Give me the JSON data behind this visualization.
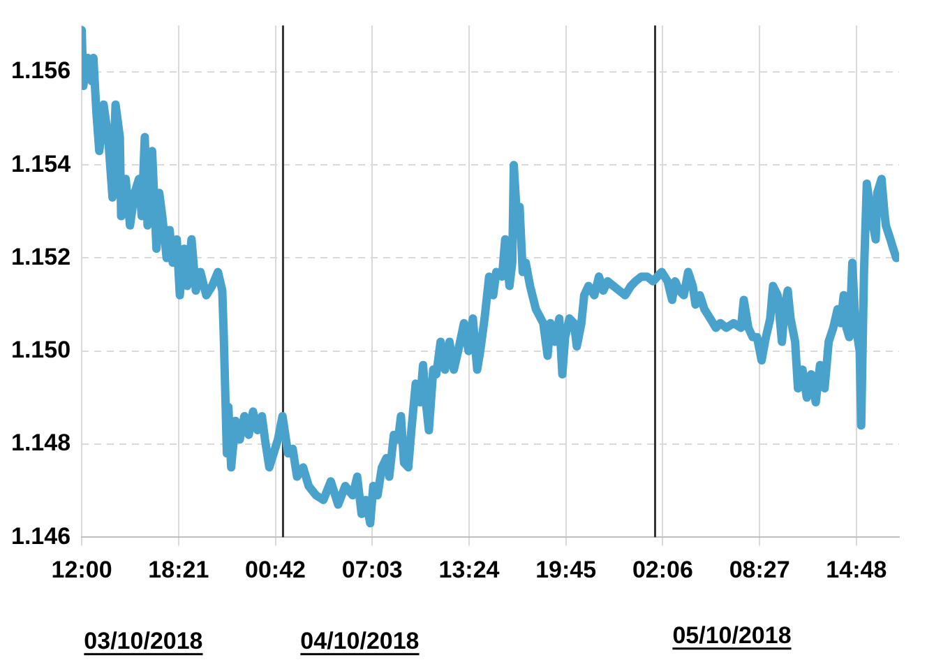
{
  "chart_data": {
    "type": "line",
    "x": [
      "2018-10-03T12:00",
      "2018-10-03T12:06",
      "2018-10-03T12:23",
      "2018-10-03T12:40",
      "2018-10-03T12:46",
      "2018-10-03T12:58",
      "2018-10-03T13:09",
      "2018-10-03T13:20",
      "2018-10-03T13:26",
      "2018-10-03T13:44",
      "2018-10-03T14:01",
      "2018-10-03T14:13",
      "2018-10-03T14:30",
      "2018-10-03T14:35",
      "2018-10-03T14:53",
      "2018-10-03T15:10",
      "2018-10-03T15:28",
      "2018-10-03T15:45",
      "2018-10-03T15:56",
      "2018-10-03T16:08",
      "2018-10-03T16:19",
      "2018-10-03T16:37",
      "2018-10-03T16:54",
      "2018-10-03T17:05",
      "2018-10-03T17:17",
      "2018-10-03T17:34",
      "2018-10-03T17:46",
      "2018-10-03T17:58",
      "2018-10-03T18:14",
      "2018-10-03T18:26",
      "2018-10-03T18:43",
      "2018-10-03T18:55",
      "2018-10-03T19:12",
      "2018-10-03T19:29",
      "2018-10-03T19:47",
      "2018-10-03T20:10",
      "2018-10-03T20:33",
      "2018-10-03T20:56",
      "2018-10-03T21:13",
      "2018-10-03T21:19",
      "2018-10-03T21:31",
      "2018-10-03T21:37",
      "2018-10-03T21:48",
      "2018-10-03T22:05",
      "2018-10-03T22:22",
      "2018-10-03T22:40",
      "2018-10-03T22:57",
      "2018-10-03T23:14",
      "2018-10-03T23:32",
      "2018-10-03T23:49",
      "2018-10-04T00:01",
      "2018-10-04T00:18",
      "2018-10-04T00:35",
      "2018-10-04T00:52",
      "2018-10-04T01:10",
      "2018-10-04T01:32",
      "2018-10-04T01:50",
      "2018-10-04T02:07",
      "2018-10-04T02:31",
      "2018-10-04T02:53",
      "2018-10-04T03:22",
      "2018-10-04T03:51",
      "2018-10-04T04:20",
      "2018-10-04T04:49",
      "2018-10-04T05:17",
      "2018-10-04T05:46",
      "2018-10-04T06:04",
      "2018-10-04T06:21",
      "2018-10-04T06:38",
      "2018-10-04T06:55",
      "2018-10-04T07:07",
      "2018-10-04T07:24",
      "2018-10-04T07:41",
      "2018-10-04T07:59",
      "2018-10-04T08:10",
      "2018-10-04T08:28",
      "2018-10-04T08:45",
      "2018-10-04T08:56",
      "2018-10-04T09:08",
      "2018-10-04T09:25",
      "2018-10-04T09:37",
      "2018-10-04T09:54",
      "2018-10-04T10:11",
      "2018-10-04T10:23",
      "2018-10-04T10:34",
      "2018-10-04T10:46",
      "2018-10-04T11:03",
      "2018-10-04T11:15",
      "2018-10-04T11:32",
      "2018-10-04T11:49",
      "2018-10-04T12:07",
      "2018-10-04T12:24",
      "2018-10-04T12:41",
      "2018-10-04T13:04",
      "2018-10-04T13:22",
      "2018-10-04T13:39",
      "2018-10-04T13:56",
      "2018-10-04T14:08",
      "2018-10-04T14:25",
      "2018-10-04T14:43",
      "2018-10-04T14:59",
      "2018-10-04T15:11",
      "2018-10-04T15:34",
      "2018-10-04T15:46",
      "2018-10-04T16:03",
      "2018-10-04T16:14",
      "2018-10-04T16:20",
      "2018-10-04T16:32",
      "2018-10-04T16:43",
      "2018-10-04T16:55",
      "2018-10-04T17:07",
      "2018-10-04T17:24",
      "2018-10-04T17:47",
      "2018-10-04T18:16",
      "2018-10-04T18:33",
      "2018-10-04T18:44",
      "2018-10-04T19:02",
      "2018-10-04T19:19",
      "2018-10-04T19:31",
      "2018-10-04T19:42",
      "2018-10-04T19:59",
      "2018-10-04T20:17",
      "2018-10-04T20:28",
      "2018-10-04T20:46",
      "2018-10-04T20:57",
      "2018-10-04T21:14",
      "2018-10-04T21:37",
      "2018-10-04T21:55",
      "2018-10-04T22:12",
      "2018-10-04T22:29",
      "2018-10-04T22:52",
      "2018-10-04T23:15",
      "2018-10-04T23:38",
      "2018-10-05T00:01",
      "2018-10-05T00:19",
      "2018-10-05T00:42",
      "2018-10-05T01:05",
      "2018-10-05T01:28",
      "2018-10-05T01:45",
      "2018-10-05T02:02",
      "2018-10-05T02:25",
      "2018-10-05T02:43",
      "2018-10-05T02:55",
      "2018-10-05T03:11",
      "2018-10-05T03:29",
      "2018-10-05T03:46",
      "2018-10-05T04:04",
      "2018-10-05T04:15",
      "2018-10-05T04:32",
      "2018-10-05T04:50",
      "2018-10-05T05:13",
      "2018-10-05T05:35",
      "2018-10-05T05:53",
      "2018-10-05T06:16",
      "2018-10-05T06:45",
      "2018-10-05T07:14",
      "2018-10-05T07:25",
      "2018-10-05T07:43",
      "2018-10-05T08:00",
      "2018-10-05T08:17",
      "2018-10-05T08:35",
      "2018-10-05T08:52",
      "2018-10-05T09:09",
      "2018-10-05T09:20",
      "2018-10-05T09:38",
      "2018-10-05T09:55",
      "2018-10-05T10:07",
      "2018-10-05T10:18",
      "2018-10-05T10:29",
      "2018-10-05T10:47",
      "2018-10-05T10:58",
      "2018-10-05T11:16",
      "2018-10-05T11:33",
      "2018-10-05T11:50",
      "2018-10-05T12:08",
      "2018-10-05T12:25",
      "2018-10-05T12:43",
      "2018-10-05T12:59",
      "2018-10-05T13:17",
      "2018-10-05T13:34",
      "2018-10-05T13:46",
      "2018-10-05T13:58",
      "2018-10-05T14:09",
      "2018-10-05T14:20",
      "2018-10-05T14:32",
      "2018-10-05T14:44",
      "2018-10-05T15:01",
      "2018-10-05T15:07",
      "2018-10-05T15:18",
      "2018-10-05T15:29",
      "2018-10-05T15:47",
      "2018-10-05T16:04",
      "2018-10-05T16:10",
      "2018-10-05T16:27",
      "2018-10-05T16:38",
      "2018-10-05T16:44",
      "2018-10-05T17:02",
      "2018-10-05T17:13",
      "2018-10-05T17:25"
    ],
    "series": [
      {
        "color": "#48a2cb",
        "values": [
          1.1569,
          1.1557,
          1.1563,
          1.1558,
          1.1563,
          1.1551,
          1.1543,
          1.1548,
          1.1553,
          1.1546,
          1.1533,
          1.1553,
          1.1546,
          1.1529,
          1.1537,
          1.1527,
          1.1534,
          1.1537,
          1.1529,
          1.1546,
          1.1527,
          1.1543,
          1.1522,
          1.1534,
          1.1529,
          1.152,
          1.1526,
          1.1519,
          1.1524,
          1.1512,
          1.1522,
          1.1514,
          1.1524,
          1.1513,
          1.1517,
          1.1512,
          1.1514,
          1.1517,
          1.1513,
          1.1503,
          1.1478,
          1.1488,
          1.1475,
          1.1485,
          1.1481,
          1.1486,
          1.1482,
          1.1487,
          1.1483,
          1.1486,
          1.1481,
          1.1475,
          1.1478,
          1.1481,
          1.1486,
          1.1478,
          1.1479,
          1.1473,
          1.1475,
          1.1471,
          1.1469,
          1.1468,
          1.1472,
          1.1467,
          1.1471,
          1.1469,
          1.1473,
          1.1465,
          1.1468,
          1.1463,
          1.1471,
          1.1469,
          1.1475,
          1.1477,
          1.1473,
          1.1482,
          1.1481,
          1.1486,
          1.1476,
          1.1475,
          1.1483,
          1.1493,
          1.1489,
          1.1497,
          1.1489,
          1.1483,
          1.1496,
          1.1495,
          1.1502,
          1.1496,
          1.1502,
          1.1496,
          1.15,
          1.1506,
          1.15,
          1.1507,
          1.1496,
          1.15,
          1.1507,
          1.1516,
          1.1512,
          1.1517,
          1.1516,
          1.1524,
          1.1514,
          1.1519,
          1.154,
          1.1529,
          1.1531,
          1.1517,
          1.1519,
          1.1514,
          1.1509,
          1.1506,
          1.1499,
          1.1506,
          1.1502,
          1.1507,
          1.1495,
          1.1503,
          1.1507,
          1.1506,
          1.1501,
          1.1506,
          1.1512,
          1.1514,
          1.1512,
          1.1516,
          1.1513,
          1.1515,
          1.1514,
          1.1513,
          1.1512,
          1.1514,
          1.1515,
          1.1516,
          1.1516,
          1.1515,
          1.1516,
          1.1517,
          1.1515,
          1.1511,
          1.1515,
          1.1513,
          1.1512,
          1.1517,
          1.1514,
          1.151,
          1.1512,
          1.1509,
          1.1507,
          1.1505,
          1.1506,
          1.1505,
          1.1506,
          1.1505,
          1.1511,
          1.1505,
          1.1503,
          1.1503,
          1.1498,
          1.1503,
          1.1507,
          1.1514,
          1.1512,
          1.1502,
          1.151,
          1.1513,
          1.1507,
          1.1502,
          1.1492,
          1.1496,
          1.149,
          1.1495,
          1.1489,
          1.1497,
          1.1492,
          1.1502,
          1.1505,
          1.1509,
          1.1506,
          1.1512,
          1.1505,
          1.1503,
          1.1519,
          1.1506,
          1.15,
          1.1484,
          1.1517,
          1.1536,
          1.1529,
          1.1524,
          1.1534,
          1.1537,
          1.153,
          1.1527,
          1.1524,
          1.1522,
          1.152
        ]
      }
    ],
    "xlim": [
      "2018-10-03T12:00",
      "2018-10-05T17:36"
    ],
    "xticks": [
      {
        "value": "2018-10-03T12:00",
        "label": "12:00"
      },
      {
        "value": "2018-10-03T18:21",
        "label": "18:21"
      },
      {
        "value": "2018-10-04T00:42",
        "label": "00:42"
      },
      {
        "value": "2018-10-04T07:03",
        "label": "07:03"
      },
      {
        "value": "2018-10-04T13:24",
        "label": "13:24"
      },
      {
        "value": "2018-10-04T19:45",
        "label": "19:45"
      },
      {
        "value": "2018-10-05T02:06",
        "label": "02:06"
      },
      {
        "value": "2018-10-05T08:27",
        "label": "08:27"
      },
      {
        "value": "2018-10-05T14:48",
        "label": "14:48"
      }
    ],
    "ylim": [
      1.146,
      1.157
    ],
    "yticks": [
      {
        "value": 1.146,
        "label": "1.146"
      },
      {
        "value": 1.148,
        "label": "1.148"
      },
      {
        "value": 1.15,
        "label": "1.150"
      },
      {
        "value": 1.152,
        "label": "1.152"
      },
      {
        "value": 1.154,
        "label": "1.154"
      },
      {
        "value": 1.156,
        "label": "1.156"
      }
    ],
    "ref_lines": [
      {
        "axis": "x",
        "value": "2018-10-04T01:12",
        "color": "#333333"
      },
      {
        "axis": "x",
        "value": "2018-10-05T01:36",
        "color": "#333333"
      }
    ],
    "annotations": [
      "03/10/2018",
      "04/10/2018",
      "05/10/2018"
    ],
    "grid": true,
    "legend": false,
    "marker": "none",
    "line_style": "solid"
  }
}
